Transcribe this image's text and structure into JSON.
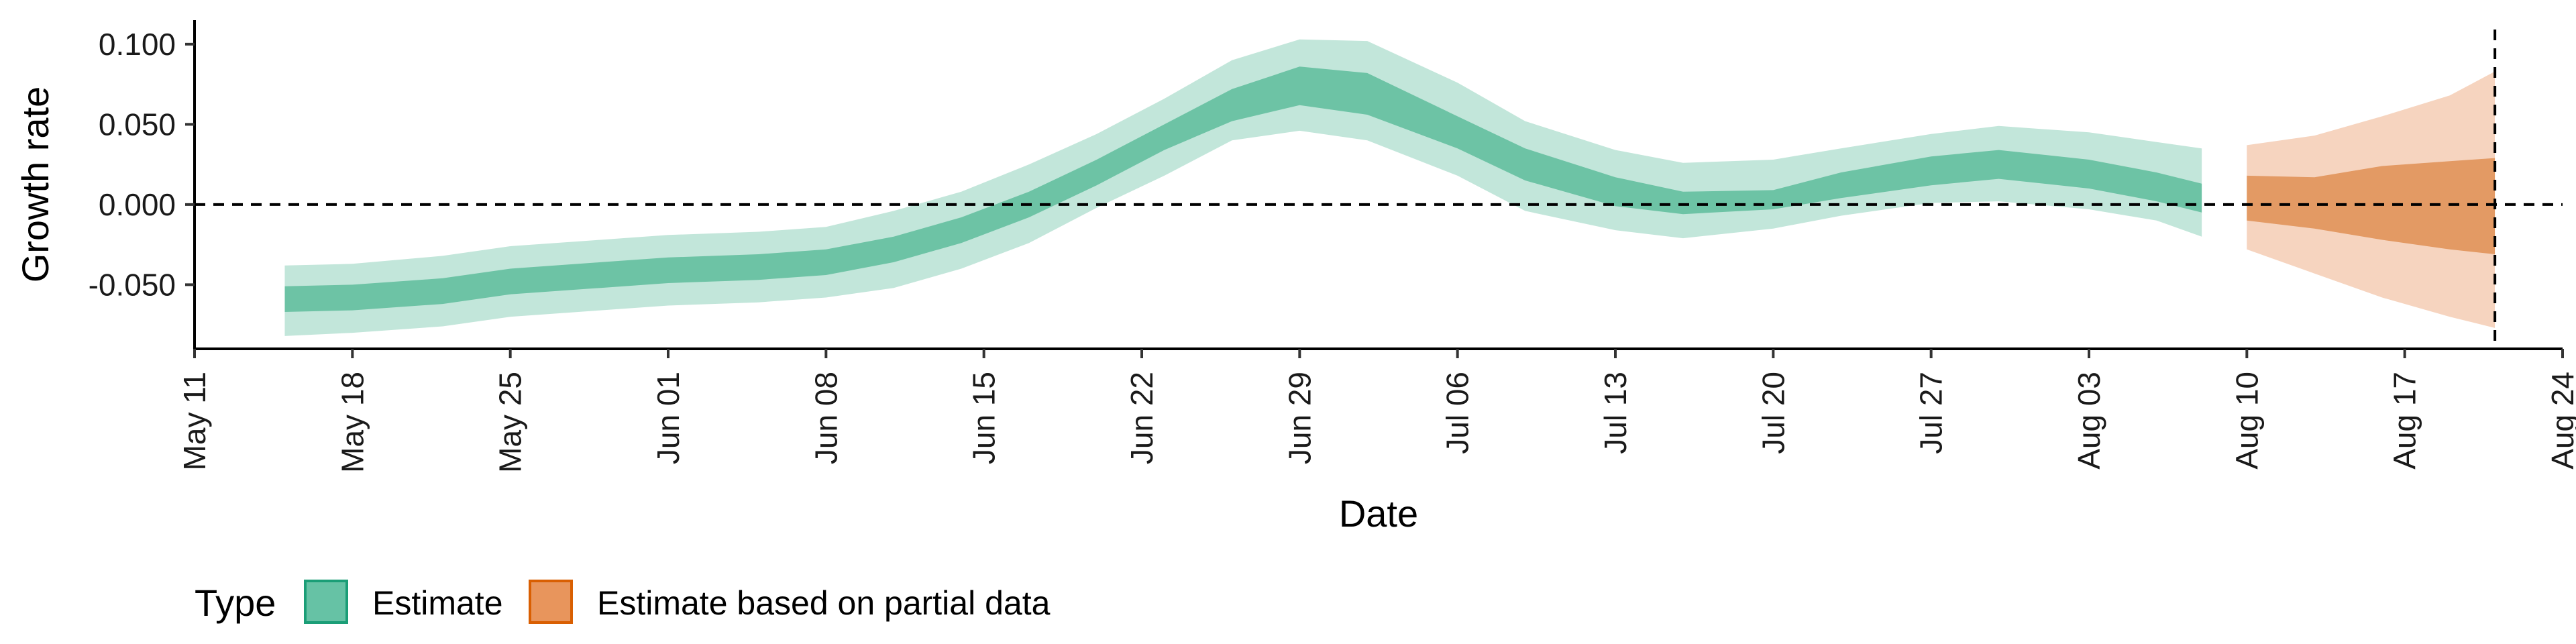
{
  "chart_data": {
    "type": "area",
    "xlabel": "Date",
    "ylabel": "Growth rate",
    "x_axis": {
      "type": "date",
      "range": [
        "2020-05-11",
        "2020-08-24"
      ],
      "tick_labels": [
        "May 11",
        "May 18",
        "May 25",
        "Jun 01",
        "Jun 08",
        "Jun 15",
        "Jun 22",
        "Jun 29",
        "Jul 06",
        "Jul 13",
        "Jul 20",
        "Jul 27",
        "Aug 03",
        "Aug 10",
        "Aug 17",
        "Aug 24"
      ]
    },
    "y_axis": {
      "range": [
        -0.09,
        0.115
      ],
      "tick_values": [
        -0.05,
        0.0,
        0.05,
        0.1
      ],
      "tick_labels": [
        "-0.050",
        "0.000",
        "0.050",
        "0.100"
      ]
    },
    "reference_lines": {
      "horizontal_y": 0.0,
      "vertical_date": "2020-08-21",
      "style": "dashed"
    },
    "legend": {
      "title": "Type",
      "position": "bottom-left",
      "items": [
        {
          "label": "Estimate",
          "fill": "#66c2a5",
          "stroke": "#1b9e77"
        },
        {
          "label": "Estimate based on partial data",
          "fill": "#e8955c",
          "stroke": "#d95f02"
        }
      ]
    },
    "series": [
      {
        "name": "Estimate",
        "colors": {
          "outer": "#c2e6da",
          "inner": "#6dc3a5"
        },
        "x": [
          "2020-05-15",
          "2020-05-18",
          "2020-05-22",
          "2020-05-25",
          "2020-05-29",
          "2020-06-01",
          "2020-06-05",
          "2020-06-08",
          "2020-06-11",
          "2020-06-14",
          "2020-06-17",
          "2020-06-20",
          "2020-06-23",
          "2020-06-26",
          "2020-06-29",
          "2020-07-02",
          "2020-07-06",
          "2020-07-09",
          "2020-07-13",
          "2020-07-16",
          "2020-07-20",
          "2020-07-23",
          "2020-07-27",
          "2020-07-30",
          "2020-08-03",
          "2020-08-06",
          "2020-08-08"
        ],
        "median": [
          -0.059,
          -0.058,
          -0.054,
          -0.048,
          -0.044,
          -0.041,
          -0.039,
          -0.036,
          -0.028,
          -0.016,
          0.0,
          0.02,
          0.042,
          0.062,
          0.074,
          0.069,
          0.045,
          0.025,
          0.008,
          0.001,
          0.003,
          0.012,
          0.021,
          0.025,
          0.019,
          0.011,
          0.004
        ],
        "inner_lower": [
          -0.067,
          -0.066,
          -0.062,
          -0.056,
          -0.052,
          -0.049,
          -0.047,
          -0.044,
          -0.036,
          -0.024,
          -0.008,
          0.012,
          0.034,
          0.052,
          0.062,
          0.056,
          0.035,
          0.015,
          -0.001,
          -0.006,
          -0.003,
          0.004,
          0.012,
          0.016,
          0.01,
          0.002,
          -0.005
        ],
        "inner_upper": [
          -0.051,
          -0.05,
          -0.046,
          -0.04,
          -0.036,
          -0.033,
          -0.031,
          -0.028,
          -0.02,
          -0.008,
          0.008,
          0.028,
          0.05,
          0.072,
          0.086,
          0.082,
          0.055,
          0.035,
          0.017,
          0.008,
          0.009,
          0.02,
          0.03,
          0.034,
          0.028,
          0.02,
          0.013
        ],
        "outer_lower": [
          -0.082,
          -0.08,
          -0.076,
          -0.07,
          -0.066,
          -0.063,
          -0.061,
          -0.058,
          -0.052,
          -0.04,
          -0.024,
          -0.002,
          0.018,
          0.04,
          0.046,
          0.04,
          0.018,
          -0.004,
          -0.016,
          -0.021,
          -0.015,
          -0.007,
          0.001,
          0.002,
          -0.003,
          -0.01,
          -0.02
        ],
        "outer_upper": [
          -0.038,
          -0.037,
          -0.032,
          -0.026,
          -0.022,
          -0.019,
          -0.017,
          -0.014,
          -0.004,
          0.008,
          0.025,
          0.044,
          0.066,
          0.09,
          0.103,
          0.102,
          0.076,
          0.052,
          0.034,
          0.026,
          0.028,
          0.035,
          0.044,
          0.049,
          0.045,
          0.039,
          0.035
        ]
      },
      {
        "name": "Estimate based on partial data",
        "colors": {
          "outer": "#f6d4bf",
          "inner": "#e39a64"
        },
        "x": [
          "2020-08-10",
          "2020-08-13",
          "2020-08-16",
          "2020-08-19",
          "2020-08-21"
        ],
        "median": [
          0.0,
          -0.005,
          -0.002,
          0.0,
          0.0
        ],
        "inner_lower": [
          -0.01,
          -0.015,
          -0.022,
          -0.028,
          -0.031
        ],
        "inner_upper": [
          0.018,
          0.017,
          0.024,
          0.027,
          0.029
        ],
        "outer_lower": [
          -0.028,
          -0.043,
          -0.058,
          -0.07,
          -0.077
        ],
        "outer_upper": [
          0.037,
          0.043,
          0.055,
          0.068,
          0.083
        ]
      }
    ]
  }
}
